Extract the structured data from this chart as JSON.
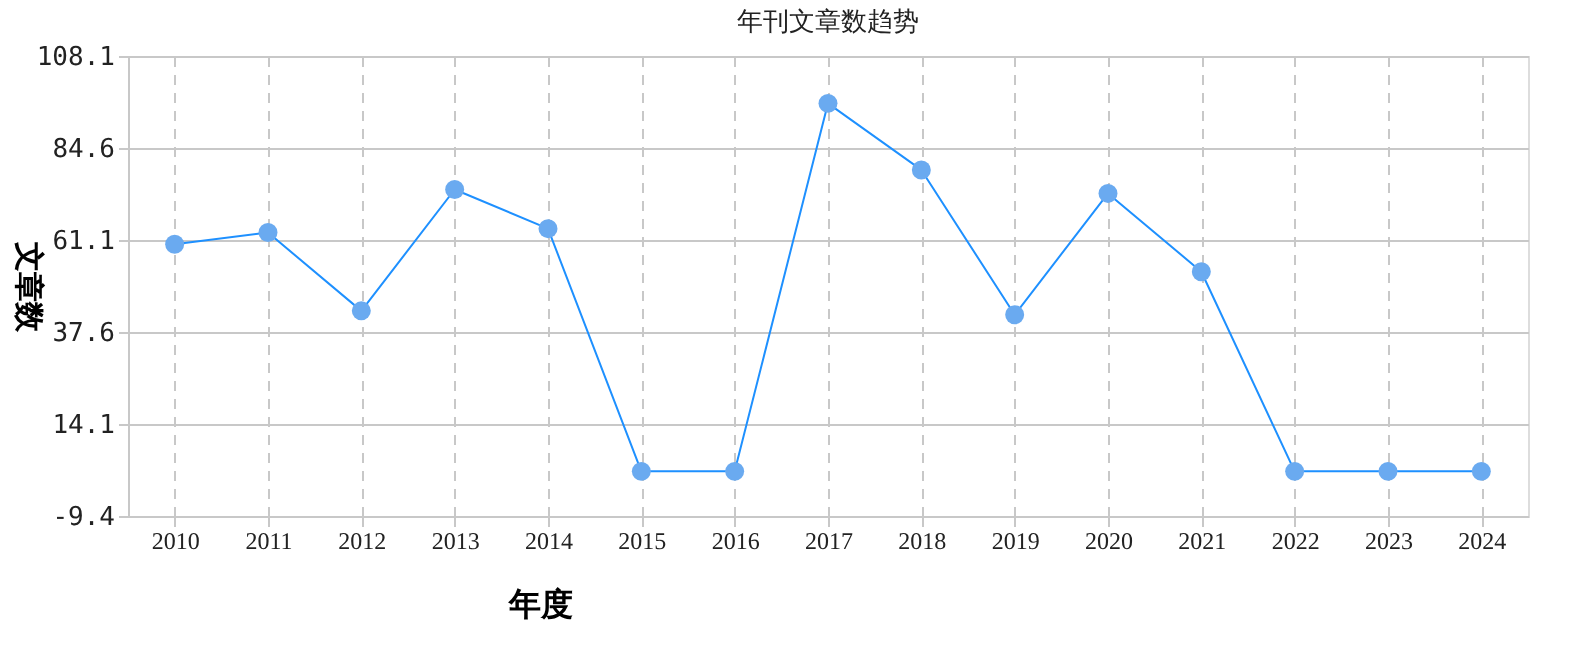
{
  "chart_data": {
    "type": "line",
    "title": "年刊文章数趋势",
    "xlabel": "年度",
    "ylabel": "文章数",
    "categories": [
      "2010",
      "2011",
      "2012",
      "2013",
      "2014",
      "2015",
      "2016",
      "2017",
      "2018",
      "2019",
      "2020",
      "2021",
      "2022",
      "2023",
      "2024"
    ],
    "series": [
      {
        "color": "#1e90ff",
        "values": [
          60,
          63,
          43,
          74,
          64,
          2,
          2,
          96,
          79,
          42,
          73,
          53,
          2,
          2,
          2
        ]
      }
    ],
    "ylim": [
      -9.4,
      108.1
    ],
    "yticks": [
      -9.4,
      14.1,
      37.6,
      61.1,
      84.6,
      108.1
    ],
    "grid": true,
    "marker": "circle",
    "line_style": "solid",
    "legend": false
  }
}
